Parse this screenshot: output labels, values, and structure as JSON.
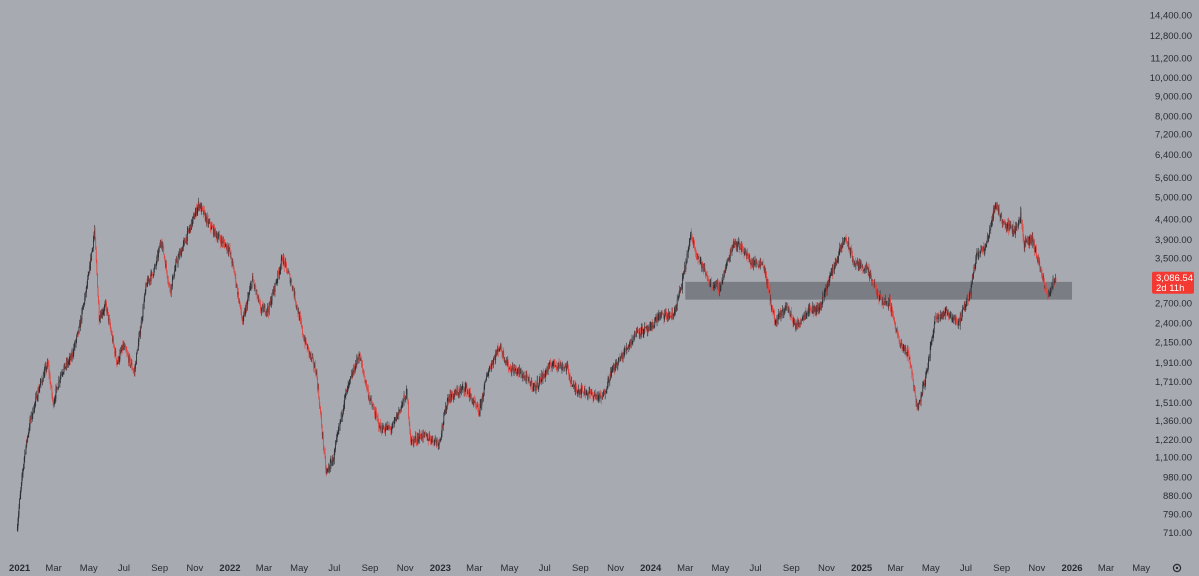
{
  "chart_data": {
    "type": "candlestick",
    "y_scale": "log",
    "ylim": [
      660,
      15000
    ],
    "xlim": [
      "2020-12-24",
      "2026-06-20"
    ],
    "y_ticks": [
      "14,400.00",
      "12,800.00",
      "11,200.00",
      "10,000.00",
      "9,000.00",
      "8,000.00",
      "7,200.00",
      "6,400.00",
      "5,600.00",
      "5,000.00",
      "4,400.00",
      "3,900.00",
      "3,500.00",
      "3,100.00",
      "2,700.00",
      "2,400.00",
      "2,150.00",
      "1,910.00",
      "1,710.00",
      "1,510.00",
      "1,360.00",
      "1,220.00",
      "1,100.00",
      "980.00",
      "880.00",
      "790.00",
      "710.00"
    ],
    "x_ticks": [
      {
        "label": "2021",
        "date": "2021-01-01",
        "year": true
      },
      {
        "label": "Mar",
        "date": "2021-03-01"
      },
      {
        "label": "May",
        "date": "2021-05-01"
      },
      {
        "label": "Jul",
        "date": "2021-07-01"
      },
      {
        "label": "Sep",
        "date": "2021-09-01"
      },
      {
        "label": "Nov",
        "date": "2021-11-01"
      },
      {
        "label": "2022",
        "date": "2022-01-01",
        "year": true
      },
      {
        "label": "Mar",
        "date": "2022-03-01"
      },
      {
        "label": "May",
        "date": "2022-05-01"
      },
      {
        "label": "Jul",
        "date": "2022-07-01"
      },
      {
        "label": "Sep",
        "date": "2022-09-01"
      },
      {
        "label": "Nov",
        "date": "2022-11-01"
      },
      {
        "label": "2023",
        "date": "2023-01-01",
        "year": true
      },
      {
        "label": "Mar",
        "date": "2023-03-01"
      },
      {
        "label": "May",
        "date": "2023-05-01"
      },
      {
        "label": "Jul",
        "date": "2023-07-01"
      },
      {
        "label": "Sep",
        "date": "2023-09-01"
      },
      {
        "label": "Nov",
        "date": "2023-11-01"
      },
      {
        "label": "2024",
        "date": "2024-01-01",
        "year": true
      },
      {
        "label": "Mar",
        "date": "2024-03-01"
      },
      {
        "label": "May",
        "date": "2024-05-01"
      },
      {
        "label": "Jul",
        "date": "2024-07-01"
      },
      {
        "label": "Sep",
        "date": "2024-09-01"
      },
      {
        "label": "Nov",
        "date": "2024-11-01"
      },
      {
        "label": "2025",
        "date": "2025-01-01",
        "year": true
      },
      {
        "label": "Mar",
        "date": "2025-03-01"
      },
      {
        "label": "May",
        "date": "2025-05-01"
      },
      {
        "label": "Jul",
        "date": "2025-07-01"
      },
      {
        "label": "Sep",
        "date": "2025-09-01"
      },
      {
        "label": "Nov",
        "date": "2025-11-01"
      },
      {
        "label": "2026",
        "date": "2026-01-01",
        "year": true
      },
      {
        "label": "Mar",
        "date": "2026-03-01"
      },
      {
        "label": "May",
        "date": "2026-05-01"
      }
    ],
    "price_path": [
      [
        "2020-12-28",
        720
      ],
      [
        "2021-01-10",
        1100
      ],
      [
        "2021-01-20",
        1350
      ],
      [
        "2021-02-05",
        1650
      ],
      [
        "2021-02-20",
        1900
      ],
      [
        "2021-03-01",
        1500
      ],
      [
        "2021-03-15",
        1800
      ],
      [
        "2021-04-01",
        1950
      ],
      [
        "2021-04-15",
        2300
      ],
      [
        "2021-05-01",
        3100
      ],
      [
        "2021-05-12",
        4100
      ],
      [
        "2021-05-20",
        2500
      ],
      [
        "2021-06-01",
        2650
      ],
      [
        "2021-06-20",
        1900
      ],
      [
        "2021-07-01",
        2100
      ],
      [
        "2021-07-20",
        1800
      ],
      [
        "2021-08-10",
        3000
      ],
      [
        "2021-08-25",
        3300
      ],
      [
        "2021-09-05",
        3900
      ],
      [
        "2021-09-20",
        2900
      ],
      [
        "2021-10-01",
        3400
      ],
      [
        "2021-10-20",
        4000
      ],
      [
        "2021-11-09",
        4800
      ],
      [
        "2021-11-25",
        4300
      ],
      [
        "2021-12-10",
        4000
      ],
      [
        "2021-12-31",
        3700
      ],
      [
        "2022-01-10",
        3200
      ],
      [
        "2022-01-24",
        2400
      ],
      [
        "2022-02-10",
        3100
      ],
      [
        "2022-02-24",
        2600
      ],
      [
        "2022-03-10",
        2600
      ],
      [
        "2022-04-03",
        3500
      ],
      [
        "2022-04-20",
        3000
      ],
      [
        "2022-05-10",
        2200
      ],
      [
        "2022-06-01",
        1800
      ],
      [
        "2022-06-18",
        1000
      ],
      [
        "2022-07-01",
        1100
      ],
      [
        "2022-07-20",
        1550
      ],
      [
        "2022-08-14",
        2000
      ],
      [
        "2022-09-01",
        1550
      ],
      [
        "2022-09-20",
        1300
      ],
      [
        "2022-10-10",
        1300
      ],
      [
        "2022-11-05",
        1600
      ],
      [
        "2022-11-12",
        1200
      ],
      [
        "2022-12-01",
        1250
      ],
      [
        "2022-12-31",
        1200
      ],
      [
        "2023-01-15",
        1550
      ],
      [
        "2023-02-15",
        1650
      ],
      [
        "2023-03-10",
        1420
      ],
      [
        "2023-03-25",
        1800
      ],
      [
        "2023-04-15",
        2100
      ],
      [
        "2023-05-01",
        1850
      ],
      [
        "2023-05-20",
        1800
      ],
      [
        "2023-06-15",
        1650
      ],
      [
        "2023-07-15",
        1900
      ],
      [
        "2023-08-10",
        1850
      ],
      [
        "2023-08-20",
        1650
      ],
      [
        "2023-09-15",
        1600
      ],
      [
        "2023-10-10",
        1550
      ],
      [
        "2023-10-25",
        1800
      ],
      [
        "2023-11-15",
        2000
      ],
      [
        "2023-12-10",
        2300
      ],
      [
        "2023-12-31",
        2300
      ],
      [
        "2024-01-15",
        2500
      ],
      [
        "2024-02-10",
        2500
      ],
      [
        "2024-02-25",
        3000
      ],
      [
        "2024-03-12",
        4000
      ],
      [
        "2024-03-25",
        3500
      ],
      [
        "2024-04-15",
        3000
      ],
      [
        "2024-05-01",
        2950
      ],
      [
        "2024-05-25",
        3850
      ],
      [
        "2024-06-10",
        3700
      ],
      [
        "2024-06-25",
        3400
      ],
      [
        "2024-07-15",
        3400
      ],
      [
        "2024-08-05",
        2400
      ],
      [
        "2024-08-25",
        2650
      ],
      [
        "2024-09-10",
        2350
      ],
      [
        "2024-10-01",
        2600
      ],
      [
        "2024-10-20",
        2600
      ],
      [
        "2024-11-10",
        3200
      ],
      [
        "2024-12-05",
        3950
      ],
      [
        "2024-12-20",
        3400
      ],
      [
        "2025-01-10",
        3300
      ],
      [
        "2025-02-03",
        2750
      ],
      [
        "2025-02-20",
        2700
      ],
      [
        "2025-03-10",
        2100
      ],
      [
        "2025-03-25",
        2000
      ],
      [
        "2025-04-09",
        1450
      ],
      [
        "2025-04-25",
        1800
      ],
      [
        "2025-05-10",
        2500
      ],
      [
        "2025-06-01",
        2550
      ],
      [
        "2025-06-20",
        2400
      ],
      [
        "2025-07-10",
        2900
      ],
      [
        "2025-07-20",
        3600
      ],
      [
        "2025-08-05",
        3700
      ],
      [
        "2025-08-22",
        4800
      ],
      [
        "2025-09-05",
        4300
      ],
      [
        "2025-09-25",
        4100
      ],
      [
        "2025-10-05",
        4500
      ],
      [
        "2025-10-11",
        3800
      ],
      [
        "2025-10-25",
        3900
      ],
      [
        "2025-11-05",
        3400
      ],
      [
        "2025-11-20",
        2800
      ],
      [
        "2025-11-28",
        3000
      ],
      [
        "2025-12-04",
        3086
      ]
    ],
    "zone": {
      "start": "2024-03-01",
      "end": "2026-01-01",
      "low": 2750,
      "high": 3050
    },
    "last_price": {
      "value": 3086.54,
      "label": "3,086.54",
      "countdown": "2d 11h"
    },
    "colors": {
      "up": "#2d2f33",
      "down": "#e0443f",
      "zone": "#6b6e74",
      "price_tag": "#f23a32",
      "background": "#a7aab1",
      "text": "#2a2c31"
    }
  }
}
